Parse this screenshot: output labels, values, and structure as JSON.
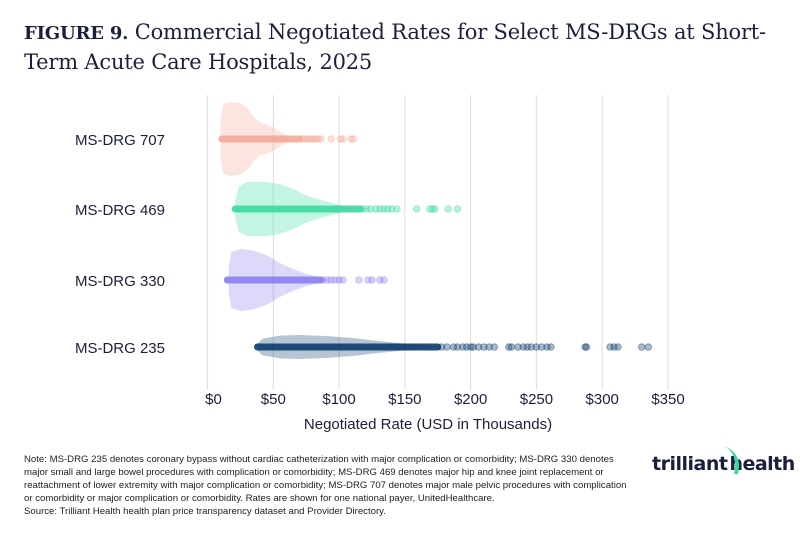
{
  "title": {
    "figure_label": "FIGURE 9.",
    "text": "Commercial Negotiated Rates for Select MS-DRGs at Short-Term Acute Care Hospitals, 2025"
  },
  "chart_data": {
    "type": "violin-strip",
    "xlabel": "Negotiated Rate (USD in Thousands)",
    "ylabel": "",
    "xlim": [
      0,
      350
    ],
    "x_ticks": [
      0,
      50,
      100,
      150,
      200,
      250,
      300,
      350
    ],
    "x_tick_labels": [
      "$0",
      "$50",
      "$100",
      "$150",
      "$200",
      "$250",
      "$300",
      "$350"
    ],
    "grid": "vertical",
    "categories": [
      "MS-DRG 707",
      "MS-DRG 469",
      "MS-DRG 330",
      "MS-DRG 235"
    ],
    "series": [
      {
        "name": "MS-DRG 707",
        "color": "#f4a898",
        "dense_range": [
          11,
          70
        ],
        "points": [
          72,
          74,
          76,
          78,
          80,
          82,
          84,
          86,
          94,
          101,
          103,
          109,
          111
        ],
        "density": [
          [
            10,
            0.55
          ],
          [
            12,
            0.95
          ],
          [
            18,
            1.0
          ],
          [
            25,
            0.97
          ],
          [
            30,
            0.85
          ],
          [
            35,
            0.6
          ],
          [
            40,
            0.45
          ],
          [
            45,
            0.4
          ],
          [
            50,
            0.32
          ],
          [
            55,
            0.2
          ],
          [
            60,
            0.1
          ],
          [
            65,
            0.05
          ],
          [
            70,
            0.0
          ]
        ]
      },
      {
        "name": "MS-DRG 469",
        "color": "#3dd9a0",
        "dense_range": [
          21,
          116
        ],
        "points": [
          118,
          121,
          124,
          128,
          131,
          134,
          137,
          140,
          144,
          159,
          169,
          171,
          173,
          183,
          190
        ],
        "density": [
          [
            21,
            0.3
          ],
          [
            24,
            0.85
          ],
          [
            30,
            1.0
          ],
          [
            45,
            1.0
          ],
          [
            55,
            0.92
          ],
          [
            65,
            0.75
          ],
          [
            75,
            0.5
          ],
          [
            85,
            0.35
          ],
          [
            95,
            0.22
          ],
          [
            105,
            0.1
          ],
          [
            115,
            0.0
          ]
        ]
      },
      {
        "name": "MS-DRG 330",
        "color": "#8b80ee",
        "dense_range": [
          15,
          86
        ],
        "points": [
          88,
          91,
          94,
          97,
          100,
          103,
          115,
          122,
          125,
          131,
          134
        ],
        "density": [
          [
            16,
            0.4
          ],
          [
            18,
            0.9
          ],
          [
            25,
            1.0
          ],
          [
            35,
            0.95
          ],
          [
            45,
            0.8
          ],
          [
            55,
            0.55
          ],
          [
            65,
            0.35
          ],
          [
            75,
            0.2
          ],
          [
            85,
            0.08
          ],
          [
            92,
            0.0
          ]
        ]
      },
      {
        "name": "MS-DRG 235",
        "color": "#0d3b6e",
        "dense_range": [
          38,
          175
        ],
        "points": [
          178,
          182,
          187,
          190,
          194,
          197,
          200,
          202,
          206,
          210,
          214,
          218,
          229,
          231,
          236,
          240,
          243,
          246,
          250,
          254,
          258,
          261,
          287,
          288,
          306,
          309,
          312,
          330,
          335
        ],
        "density": [
          [
            38,
            0.3
          ],
          [
            42,
            0.7
          ],
          [
            55,
            0.95
          ],
          [
            70,
            1.0
          ],
          [
            90,
            0.92
          ],
          [
            110,
            0.75
          ],
          [
            130,
            0.5
          ],
          [
            150,
            0.28
          ],
          [
            165,
            0.12
          ],
          [
            175,
            0.0
          ]
        ]
      }
    ]
  },
  "note": "Note: MS-DRG 235 denotes coronary bypass without cardiac catheterization with major complication or comorbidity; MS-DRG 330 denotes major small and large bowel procedures with complication or comorbidity; MS-DRG 469 denotes major hip and knee joint replacement or reattachment of lower extremity with major complication or comorbidity; MS-DRG 707 denotes major male pelvic procedures with complication or comorbidity or major complication or comorbidity. Rates are shown for one national payer, UnitedHealthcare.",
  "source": "Source: Trilliant Health health plan price transparency dataset and Provider Directory.",
  "logo": "trilliant health"
}
